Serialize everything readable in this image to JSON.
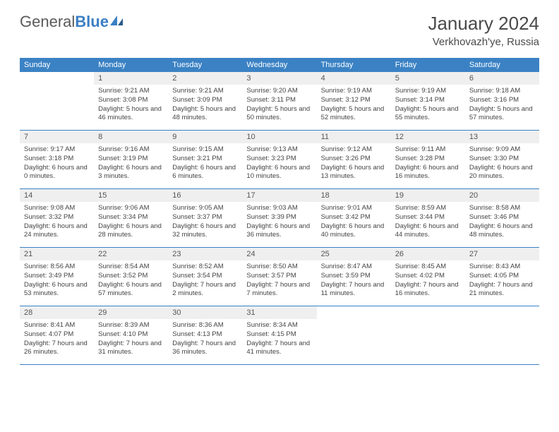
{
  "logo": {
    "word1": "General",
    "word2": "Blue"
  },
  "title": "January 2024",
  "location": "Verkhovazh'ye, Russia",
  "colors": {
    "header_bg": "#3b82c4",
    "header_text": "#ffffff",
    "daynum_bg": "#efefef",
    "border": "#3b82c4",
    "text": "#444444",
    "logo_gray": "#5a5a5a",
    "logo_blue": "#3b7fc4"
  },
  "dayNames": [
    "Sunday",
    "Monday",
    "Tuesday",
    "Wednesday",
    "Thursday",
    "Friday",
    "Saturday"
  ],
  "weeks": [
    [
      {
        "n": "",
        "sr": "",
        "ss": "",
        "dl": "",
        "empty": true
      },
      {
        "n": "1",
        "sr": "Sunrise: 9:21 AM",
        "ss": "Sunset: 3:08 PM",
        "dl": "Daylight: 5 hours and 46 minutes."
      },
      {
        "n": "2",
        "sr": "Sunrise: 9:21 AM",
        "ss": "Sunset: 3:09 PM",
        "dl": "Daylight: 5 hours and 48 minutes."
      },
      {
        "n": "3",
        "sr": "Sunrise: 9:20 AM",
        "ss": "Sunset: 3:11 PM",
        "dl": "Daylight: 5 hours and 50 minutes."
      },
      {
        "n": "4",
        "sr": "Sunrise: 9:19 AM",
        "ss": "Sunset: 3:12 PM",
        "dl": "Daylight: 5 hours and 52 minutes."
      },
      {
        "n": "5",
        "sr": "Sunrise: 9:19 AM",
        "ss": "Sunset: 3:14 PM",
        "dl": "Daylight: 5 hours and 55 minutes."
      },
      {
        "n": "6",
        "sr": "Sunrise: 9:18 AM",
        "ss": "Sunset: 3:16 PM",
        "dl": "Daylight: 5 hours and 57 minutes."
      }
    ],
    [
      {
        "n": "7",
        "sr": "Sunrise: 9:17 AM",
        "ss": "Sunset: 3:18 PM",
        "dl": "Daylight: 6 hours and 0 minutes."
      },
      {
        "n": "8",
        "sr": "Sunrise: 9:16 AM",
        "ss": "Sunset: 3:19 PM",
        "dl": "Daylight: 6 hours and 3 minutes."
      },
      {
        "n": "9",
        "sr": "Sunrise: 9:15 AM",
        "ss": "Sunset: 3:21 PM",
        "dl": "Daylight: 6 hours and 6 minutes."
      },
      {
        "n": "10",
        "sr": "Sunrise: 9:13 AM",
        "ss": "Sunset: 3:23 PM",
        "dl": "Daylight: 6 hours and 10 minutes."
      },
      {
        "n": "11",
        "sr": "Sunrise: 9:12 AM",
        "ss": "Sunset: 3:26 PM",
        "dl": "Daylight: 6 hours and 13 minutes."
      },
      {
        "n": "12",
        "sr": "Sunrise: 9:11 AM",
        "ss": "Sunset: 3:28 PM",
        "dl": "Daylight: 6 hours and 16 minutes."
      },
      {
        "n": "13",
        "sr": "Sunrise: 9:09 AM",
        "ss": "Sunset: 3:30 PM",
        "dl": "Daylight: 6 hours and 20 minutes."
      }
    ],
    [
      {
        "n": "14",
        "sr": "Sunrise: 9:08 AM",
        "ss": "Sunset: 3:32 PM",
        "dl": "Daylight: 6 hours and 24 minutes."
      },
      {
        "n": "15",
        "sr": "Sunrise: 9:06 AM",
        "ss": "Sunset: 3:34 PM",
        "dl": "Daylight: 6 hours and 28 minutes."
      },
      {
        "n": "16",
        "sr": "Sunrise: 9:05 AM",
        "ss": "Sunset: 3:37 PM",
        "dl": "Daylight: 6 hours and 32 minutes."
      },
      {
        "n": "17",
        "sr": "Sunrise: 9:03 AM",
        "ss": "Sunset: 3:39 PM",
        "dl": "Daylight: 6 hours and 36 minutes."
      },
      {
        "n": "18",
        "sr": "Sunrise: 9:01 AM",
        "ss": "Sunset: 3:42 PM",
        "dl": "Daylight: 6 hours and 40 minutes."
      },
      {
        "n": "19",
        "sr": "Sunrise: 8:59 AM",
        "ss": "Sunset: 3:44 PM",
        "dl": "Daylight: 6 hours and 44 minutes."
      },
      {
        "n": "20",
        "sr": "Sunrise: 8:58 AM",
        "ss": "Sunset: 3:46 PM",
        "dl": "Daylight: 6 hours and 48 minutes."
      }
    ],
    [
      {
        "n": "21",
        "sr": "Sunrise: 8:56 AM",
        "ss": "Sunset: 3:49 PM",
        "dl": "Daylight: 6 hours and 53 minutes."
      },
      {
        "n": "22",
        "sr": "Sunrise: 8:54 AM",
        "ss": "Sunset: 3:52 PM",
        "dl": "Daylight: 6 hours and 57 minutes."
      },
      {
        "n": "23",
        "sr": "Sunrise: 8:52 AM",
        "ss": "Sunset: 3:54 PM",
        "dl": "Daylight: 7 hours and 2 minutes."
      },
      {
        "n": "24",
        "sr": "Sunrise: 8:50 AM",
        "ss": "Sunset: 3:57 PM",
        "dl": "Daylight: 7 hours and 7 minutes."
      },
      {
        "n": "25",
        "sr": "Sunrise: 8:47 AM",
        "ss": "Sunset: 3:59 PM",
        "dl": "Daylight: 7 hours and 11 minutes."
      },
      {
        "n": "26",
        "sr": "Sunrise: 8:45 AM",
        "ss": "Sunset: 4:02 PM",
        "dl": "Daylight: 7 hours and 16 minutes."
      },
      {
        "n": "27",
        "sr": "Sunrise: 8:43 AM",
        "ss": "Sunset: 4:05 PM",
        "dl": "Daylight: 7 hours and 21 minutes."
      }
    ],
    [
      {
        "n": "28",
        "sr": "Sunrise: 8:41 AM",
        "ss": "Sunset: 4:07 PM",
        "dl": "Daylight: 7 hours and 26 minutes."
      },
      {
        "n": "29",
        "sr": "Sunrise: 8:39 AM",
        "ss": "Sunset: 4:10 PM",
        "dl": "Daylight: 7 hours and 31 minutes."
      },
      {
        "n": "30",
        "sr": "Sunrise: 8:36 AM",
        "ss": "Sunset: 4:13 PM",
        "dl": "Daylight: 7 hours and 36 minutes."
      },
      {
        "n": "31",
        "sr": "Sunrise: 8:34 AM",
        "ss": "Sunset: 4:15 PM",
        "dl": "Daylight: 7 hours and 41 minutes."
      },
      {
        "n": "",
        "sr": "",
        "ss": "",
        "dl": "",
        "empty": true
      },
      {
        "n": "",
        "sr": "",
        "ss": "",
        "dl": "",
        "empty": true
      },
      {
        "n": "",
        "sr": "",
        "ss": "",
        "dl": "",
        "empty": true
      }
    ]
  ]
}
